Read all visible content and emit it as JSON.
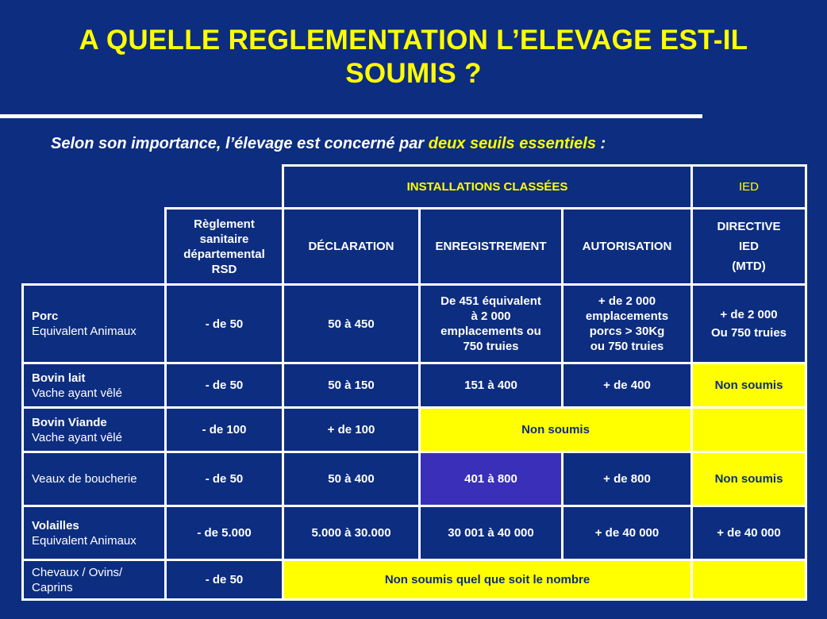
{
  "slide": {
    "title_line1": "A QUELLE REGLEMENTATION L’ELEVAGE EST-IL",
    "title_line2": "SOUMIS ?",
    "subtitle_prefix": "Selon son importance, l’élevage est concerné par ",
    "subtitle_highlight": "deux seuils essentiels",
    "subtitle_suffix": " :"
  },
  "table": {
    "group_headers": {
      "installations": "INSTALLATIONS CLASSÉES",
      "ied": "IED"
    },
    "columns": {
      "rsd": [
        "Règlement",
        "sanitaire",
        "départemental",
        "RSD"
      ],
      "declaration": "DÉCLARATION",
      "enregistrement": "ENREGISTREMENT",
      "autorisation": "AUTORISATION",
      "directive": [
        "DIRECTIVE",
        "IED",
        "(MTD)"
      ]
    },
    "rows": {
      "porc": {
        "name": "Porc",
        "sub": "Equivalent Animaux",
        "rsd": "- de 50",
        "declaration": "50 à 450",
        "enregistrement": [
          "De 451 équivalent",
          "à 2 000",
          "emplacements ou",
          "750 truies"
        ],
        "autorisation": [
          "+ de 2 000",
          "emplacements",
          "porcs > 30Kg",
          "ou 750 truies"
        ],
        "ied": [
          "+ de 2 000",
          "Ou 750 truies"
        ]
      },
      "bovin_lait": {
        "name": "Bovin lait",
        "sub": "Vache ayant vêlé",
        "rsd": "- de 50",
        "declaration": "50 à 150",
        "enregistrement": "151 à 400",
        "autorisation": "+ de 400",
        "ied": "Non soumis"
      },
      "bovin_viande": {
        "name": "Bovin Viande",
        "sub": "Vache ayant vêlé",
        "rsd": "- de 100",
        "declaration": "+ de 100",
        "enregistrement_autorisation": "Non soumis",
        "ied": ""
      },
      "veaux": {
        "name": "Veaux de boucherie",
        "rsd": "- de 50",
        "declaration": "50 à 400",
        "enregistrement": "401 à 800",
        "autorisation": "+ de 800",
        "ied": "Non soumis"
      },
      "volailles": {
        "name": "Volailles",
        "sub": "Equivalent Animaux",
        "rsd": "- de 5.000",
        "declaration": "5.000 à 30.000",
        "enregistrement": "30 001 à 40 000",
        "autorisation": "+ de 40 000",
        "ied": "+ de 40 000"
      },
      "chevaux": {
        "name_line1": "Chevaux / Ovins/",
        "name_line2": "Caprins",
        "rsd": "- de 50",
        "merged": "Non soumis quel que soit le nombre",
        "ied": ""
      }
    }
  },
  "colors": {
    "background": "#0d2d80",
    "title": "#ffff00",
    "highlight_cell": "#ffff00",
    "selected_cell": "#3a2fb8"
  }
}
